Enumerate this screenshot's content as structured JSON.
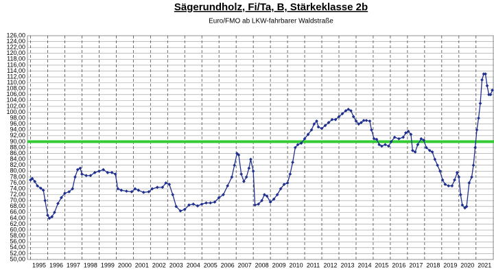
{
  "chart_data": {
    "type": "line",
    "title": "Sägerundholz, Fi/Ta, B, Stärkeklasse 2b",
    "subtitle": "Euro/FMO ab LKW-fahrbarer Waldstraße",
    "color": "#1f2f8f",
    "reference_line": {
      "value": 90,
      "color": "#33cc33"
    },
    "grid": true,
    "xlim": [
      1994.82,
      2022.05
    ],
    "xticks": [
      1995,
      1996,
      1997,
      1998,
      1999,
      2000,
      2001,
      2002,
      2003,
      2004,
      2005,
      2006,
      2007,
      2008,
      2009,
      2010,
      2011,
      2012,
      2013,
      2014,
      2015,
      2016,
      2017,
      2018,
      2019,
      2020,
      2021
    ],
    "ylim": [
      50,
      126
    ],
    "yticks": [
      {
        "value": 50,
        "label": "50,00"
      },
      {
        "value": 52,
        "label": "52,00"
      },
      {
        "value": 54,
        "label": "54,00"
      },
      {
        "value": 56,
        "label": "56,00"
      },
      {
        "value": 58,
        "label": "58,00"
      },
      {
        "value": 60,
        "label": "60,00"
      },
      {
        "value": 62,
        "label": "62,00"
      },
      {
        "value": 64,
        "label": "64,00"
      },
      {
        "value": 66,
        "label": "66,00"
      },
      {
        "value": 68,
        "label": "68,00"
      },
      {
        "value": 70,
        "label": "70,00"
      },
      {
        "value": 72,
        "label": "72,00"
      },
      {
        "value": 74,
        "label": "74,00"
      },
      {
        "value": 76,
        "label": "76,00"
      },
      {
        "value": 78,
        "label": "78,00"
      },
      {
        "value": 80,
        "label": "80,00"
      },
      {
        "value": 82,
        "label": "82,00"
      },
      {
        "value": 84,
        "label": "84,00"
      },
      {
        "value": 86,
        "label": "86,00"
      },
      {
        "value": 88,
        "label": "88,00"
      },
      {
        "value": 90,
        "label": "90,00"
      },
      {
        "value": 92,
        "label": "92,00"
      },
      {
        "value": 94,
        "label": "94,00"
      },
      {
        "value": 96,
        "label": "96,00"
      },
      {
        "value": 98,
        "label": "98,00"
      },
      {
        "value": 100,
        "label": "100,00"
      },
      {
        "value": 102,
        "label": "102,00"
      },
      {
        "value": 104,
        "label": "104,00"
      },
      {
        "value": 106,
        "label": "106,00"
      },
      {
        "value": 108,
        "label": "108,00"
      },
      {
        "value": 110,
        "label": "110,00"
      },
      {
        "value": 112,
        "label": "112,00"
      },
      {
        "value": 114,
        "label": "114,00"
      },
      {
        "value": 116,
        "label": "116,00"
      },
      {
        "value": 118,
        "label": "118,00"
      },
      {
        "value": 120,
        "label": "120,00"
      },
      {
        "value": 122,
        "label": "122,00"
      },
      {
        "value": 124,
        "label": "124,00"
      },
      {
        "value": 126,
        "label": "126,00"
      }
    ],
    "x": [
      1995.0,
      1995.1,
      1995.25,
      1995.4,
      1995.6,
      1995.75,
      1995.85,
      1996.0,
      1996.1,
      1996.25,
      1996.4,
      1996.6,
      1996.8,
      1997.0,
      1997.25,
      1997.45,
      1997.6,
      1997.75,
      1997.9,
      1998.0,
      1998.25,
      1998.5,
      1998.75,
      1999.0,
      1999.25,
      1999.5,
      1999.75,
      1999.95,
      2000.1,
      2000.3,
      2000.6,
      2000.9,
      2001.1,
      2001.3,
      2001.6,
      2001.9,
      2002.1,
      2002.4,
      2002.7,
      2002.9,
      2003.1,
      2003.3,
      2003.5,
      2003.75,
      2004.0,
      2004.25,
      2004.5,
      2004.75,
      2005.0,
      2005.25,
      2005.5,
      2005.75,
      2006.0,
      2006.25,
      2006.5,
      2006.75,
      2006.9,
      2007.05,
      2007.15,
      2007.3,
      2007.45,
      2007.6,
      2007.75,
      2007.85,
      2008.0,
      2008.1,
      2008.3,
      2008.5,
      2008.65,
      2008.8,
      2009.0,
      2009.2,
      2009.4,
      2009.6,
      2009.8,
      2010.0,
      2010.15,
      2010.3,
      2010.45,
      2010.6,
      2010.8,
      2011.0,
      2011.2,
      2011.4,
      2011.55,
      2011.7,
      2011.8,
      2012.0,
      2012.2,
      2012.4,
      2012.6,
      2012.8,
      2013.0,
      2013.2,
      2013.4,
      2013.55,
      2013.7,
      2013.85,
      2014.0,
      2014.15,
      2014.3,
      2014.45,
      2014.6,
      2014.8,
      2014.9,
      2015.05,
      2015.2,
      2015.35,
      2015.5,
      2015.7,
      2015.9,
      2016.05,
      2016.25,
      2016.5,
      2016.75,
      2016.9,
      2017.05,
      2017.2,
      2017.3,
      2017.45,
      2017.6,
      2017.8,
      2017.95,
      2018.1,
      2018.3,
      2018.45,
      2018.6,
      2018.75,
      2018.9,
      2019.05,
      2019.2,
      2019.4,
      2019.6,
      2019.75,
      2019.9,
      2020.0,
      2020.1,
      2020.2,
      2020.35,
      2020.45,
      2020.6,
      2020.75,
      2020.85,
      2020.95,
      2021.05,
      2021.15,
      2021.25,
      2021.35,
      2021.45,
      2021.55,
      2021.65,
      2021.75,
      2021.85,
      2021.95
    ],
    "values": [
      77,
      77.5,
      76.5,
      75,
      74.2,
      73.5,
      70,
      65,
      64,
      64.5,
      66,
      69,
      71,
      72.5,
      73,
      74,
      78,
      80.5,
      81,
      79,
      78.5,
      78.5,
      79.5,
      80,
      80.5,
      79.5,
      79.5,
      79,
      74,
      73.5,
      73.2,
      73,
      74,
      73.5,
      72.8,
      73,
      74,
      74.5,
      74.5,
      76,
      75.5,
      72,
      68,
      66.5,
      67,
      68.5,
      68.8,
      68.2,
      68.8,
      69.2,
      69.2,
      69.5,
      71,
      72,
      75,
      78,
      82,
      86,
      85.5,
      79,
      76.5,
      78,
      81,
      84,
      80,
      68.5,
      68.8,
      70,
      72,
      71.5,
      69.5,
      70.5,
      72,
      74,
      75.5,
      76,
      79,
      83,
      88,
      89,
      89.5,
      91,
      92.5,
      94,
      96,
      97,
      95,
      94.5,
      95.5,
      96.5,
      97.5,
      97.5,
      98.5,
      99.5,
      100.5,
      101,
      100.5,
      98.5,
      97,
      96,
      96.5,
      97.2,
      97.2,
      97,
      94,
      91,
      90.8,
      89,
      88.5,
      89,
      88.5,
      90,
      91.5,
      91,
      91.5,
      93,
      93.5,
      92.5,
      87,
      86.5,
      89,
      91,
      90.5,
      88,
      87,
      86.5,
      84,
      82,
      80,
      77,
      75.5,
      75,
      75,
      77,
      79.5,
      78,
      72,
      68.5,
      67.5,
      68,
      76,
      78,
      82,
      88,
      94,
      98,
      103,
      111,
      113,
      113,
      109,
      106,
      106,
      107.5
    ]
  }
}
